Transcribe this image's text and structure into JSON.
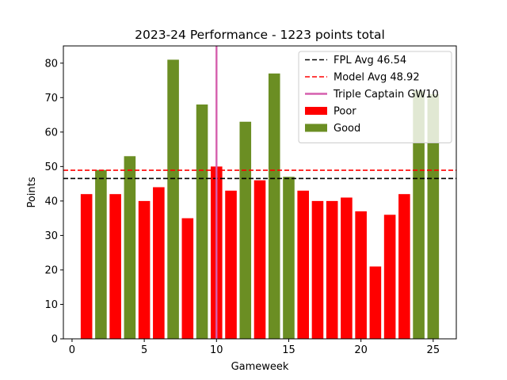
{
  "chart_data": {
    "type": "bar",
    "title": "2023-24 Performance - 1223 points total",
    "xlabel": "Gameweek",
    "ylabel": "Points",
    "xlim": [
      -0.6,
      26.6
    ],
    "ylim": [
      0,
      85
    ],
    "xticks": [
      0,
      5,
      10,
      15,
      20,
      25
    ],
    "yticks": [
      0,
      10,
      20,
      30,
      40,
      50,
      60,
      70,
      80
    ],
    "grid": false,
    "legend_position": "top-right",
    "x": [
      1,
      2,
      3,
      4,
      5,
      6,
      7,
      8,
      9,
      10,
      11,
      12,
      13,
      14,
      15,
      16,
      17,
      18,
      19,
      20,
      21,
      22,
      23,
      24,
      25
    ],
    "values": [
      42,
      49,
      42,
      53,
      40,
      44,
      81,
      35,
      68,
      50,
      43,
      63,
      46,
      77,
      47,
      43,
      40,
      40,
      41,
      37,
      21,
      36,
      42,
      72,
      71
    ],
    "categories": [
      "Poor",
      "Good",
      "Poor",
      "Good",
      "Poor",
      "Poor",
      "Good",
      "Poor",
      "Good",
      "Poor",
      "Poor",
      "Good",
      "Poor",
      "Good",
      "Good",
      "Poor",
      "Poor",
      "Poor",
      "Poor",
      "Poor",
      "Poor",
      "Poor",
      "Poor",
      "Good",
      "Good"
    ],
    "series": [
      {
        "name": "Poor",
        "color": "#ff0000"
      },
      {
        "name": "Good",
        "color": "#6b8e23"
      }
    ],
    "reference_lines": [
      {
        "orientation": "horizontal",
        "value": 46.54,
        "label": "FPL Avg 46.54",
        "color": "#000000",
        "style": "dashed"
      },
      {
        "orientation": "horizontal",
        "value": 48.92,
        "label": "Model Avg 48.92",
        "color": "#ff0000",
        "style": "dashed"
      },
      {
        "orientation": "vertical",
        "value": 10,
        "label": "Triple Captain GW10",
        "color": "#d55fad",
        "style": "solid"
      }
    ]
  }
}
